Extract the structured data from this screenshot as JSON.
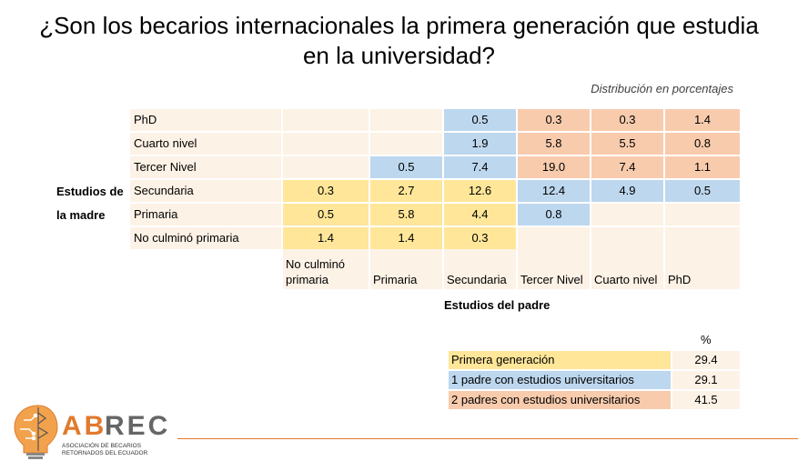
{
  "title_line1": "¿Son los becarios internacionales la primera generación que estudia",
  "title_line2": "en la universidad?",
  "subtitle": "Distribución en porcentajes",
  "mother_axis_line1": "Estudios de",
  "mother_axis_line2": "la madre",
  "father_axis": "Estudios del padre",
  "rows": [
    {
      "label": "PhD",
      "cells": [
        "",
        "",
        "0.5",
        "0.3",
        "0.3",
        "1.4"
      ]
    },
    {
      "label": "Cuarto nivel",
      "cells": [
        "",
        "",
        "1.9",
        "5.8",
        "5.5",
        "0.8"
      ]
    },
    {
      "label": "Tercer Nivel",
      "cells": [
        "",
        "0.5",
        "7.4",
        "19.0",
        "7.4",
        "1.1"
      ]
    },
    {
      "label": "Secundaria",
      "cells": [
        "0.3",
        "2.7",
        "12.6",
        "12.4",
        "4.9",
        "0.5"
      ]
    },
    {
      "label": "Primaria",
      "cells": [
        "0.5",
        "5.8",
        "4.4",
        "0.8",
        "",
        ""
      ]
    },
    {
      "label": "No culminó primaria",
      "cells": [
        "1.4",
        "1.4",
        "0.3",
        "",
        "",
        ""
      ]
    }
  ],
  "columns": [
    "No culminó primaria",
    "Primaria",
    "Secundaria",
    "Tercer Nivel",
    "Cuarto nivel",
    "PhD"
  ],
  "colors": {
    "yellow": "#FFE699",
    "blue": "#BDD7EE",
    "orange": "#F8CBAD",
    "empty": "#FDF2E6"
  },
  "legend": {
    "header": "%",
    "items": [
      {
        "label": "Primera generación",
        "value": "29.4"
      },
      {
        "label": "1 padre con estudios universitarios",
        "value": "29.1"
      },
      {
        "label": "2 padres con estudios universitarios",
        "value": "41.5"
      }
    ]
  },
  "logo": {
    "name": "ABREC",
    "sub1": "ASOCIACIÓN DE BECARIOS",
    "sub2": "RETORNADOS DEL ECUADOR"
  }
}
